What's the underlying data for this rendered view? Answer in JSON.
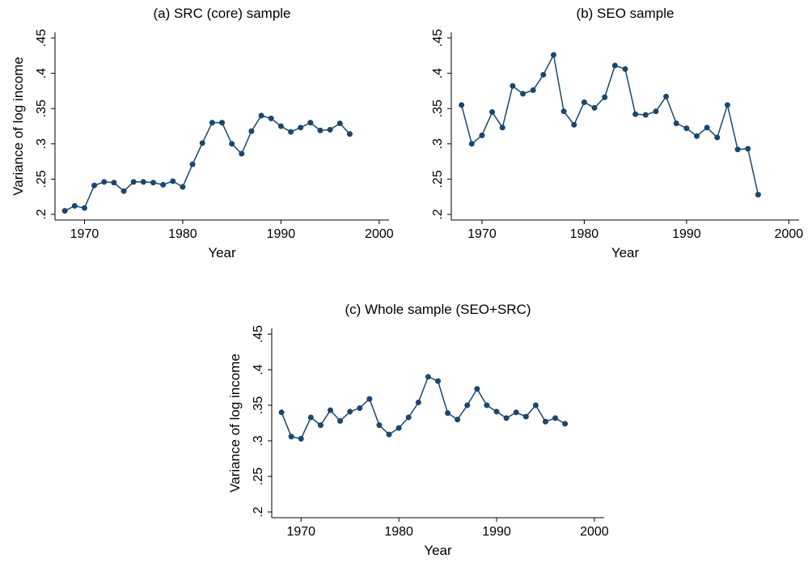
{
  "chart_data": [
    {
      "type": "line",
      "title": "(a) SRC (core) sample",
      "x_label": "Year",
      "y_label": "Variance of log income",
      "x": [
        1968,
        1969,
        1970,
        1971,
        1972,
        1973,
        1974,
        1975,
        1976,
        1977,
        1978,
        1979,
        1980,
        1981,
        1982,
        1983,
        1984,
        1985,
        1986,
        1987,
        1988,
        1989,
        1990,
        1991,
        1992,
        1993,
        1994,
        1995,
        1996,
        1997
      ],
      "values": [
        0.205,
        0.212,
        0.209,
        0.241,
        0.246,
        0.245,
        0.233,
        0.246,
        0.246,
        0.245,
        0.242,
        0.247,
        0.239,
        0.271,
        0.301,
        0.33,
        0.33,
        0.3,
        0.286,
        0.318,
        0.34,
        0.336,
        0.325,
        0.317,
        0.323,
        0.33,
        0.319,
        0.32,
        0.329,
        0.314
      ],
      "color": "#1a476f",
      "xlim": [
        1967,
        2001
      ],
      "xticks": [
        1970,
        1980,
        1990,
        2000
      ],
      "ylim": [
        0.192,
        0.458
      ],
      "yticks": [
        {
          "value": 0.2,
          "label": ".2"
        },
        {
          "value": 0.25,
          "label": ".25"
        },
        {
          "value": 0.3,
          "label": ".3"
        },
        {
          "value": 0.35,
          "label": ".35"
        },
        {
          "value": 0.4,
          "label": ".4"
        },
        {
          "value": 0.45,
          "label": ".45"
        }
      ]
    },
    {
      "type": "line",
      "title": "(b) SEO sample",
      "x_label": "Year",
      "x": [
        1968,
        1969,
        1970,
        1971,
        1972,
        1973,
        1974,
        1975,
        1976,
        1977,
        1978,
        1979,
        1980,
        1981,
        1982,
        1983,
        1984,
        1985,
        1986,
        1987,
        1988,
        1989,
        1990,
        1991,
        1992,
        1993,
        1994,
        1995,
        1996,
        1997
      ],
      "values": [
        0.355,
        0.3,
        0.312,
        0.345,
        0.323,
        0.382,
        0.371,
        0.376,
        0.398,
        0.426,
        0.346,
        0.327,
        0.359,
        0.351,
        0.366,
        0.411,
        0.406,
        0.342,
        0.341,
        0.346,
        0.367,
        0.329,
        0.322,
        0.311,
        0.323,
        0.309,
        0.355,
        0.292,
        0.293,
        0.228
      ],
      "color": "#1a476f",
      "xlim": [
        1967,
        2001
      ],
      "xticks": [
        1970,
        1980,
        1990,
        2000
      ],
      "ylim": [
        0.192,
        0.458
      ],
      "yticks": [
        {
          "value": 0.2,
          "label": ".2"
        },
        {
          "value": 0.25,
          "label": ".25"
        },
        {
          "value": 0.3,
          "label": ".3"
        },
        {
          "value": 0.35,
          "label": ".35"
        },
        {
          "value": 0.4,
          "label": ".4"
        },
        {
          "value": 0.45,
          "label": ".45"
        }
      ]
    },
    {
      "type": "line",
      "title": "(c) Whole sample (SEO+SRC)",
      "x_label": "Year",
      "y_label": "Variance of log income",
      "x": [
        1968,
        1969,
        1970,
        1971,
        1972,
        1973,
        1974,
        1975,
        1976,
        1977,
        1978,
        1979,
        1980,
        1981,
        1982,
        1983,
        1984,
        1985,
        1986,
        1987,
        1988,
        1989,
        1990,
        1991,
        1992,
        1993,
        1994,
        1995,
        1996,
        1997
      ],
      "values": [
        0.34,
        0.306,
        0.303,
        0.333,
        0.322,
        0.343,
        0.328,
        0.341,
        0.346,
        0.359,
        0.322,
        0.309,
        0.318,
        0.333,
        0.354,
        0.39,
        0.384,
        0.339,
        0.33,
        0.35,
        0.373,
        0.35,
        0.341,
        0.332,
        0.34,
        0.334,
        0.35,
        0.327,
        0.332,
        0.324
      ],
      "color": "#1a476f",
      "xlim": [
        1967,
        2001
      ],
      "xticks": [
        1970,
        1980,
        1990,
        2000
      ],
      "ylim": [
        0.192,
        0.458
      ],
      "yticks": [
        {
          "value": 0.2,
          "label": ".2"
        },
        {
          "value": 0.25,
          "label": ".25"
        },
        {
          "value": 0.3,
          "label": ".3"
        },
        {
          "value": 0.35,
          "label": ".35"
        },
        {
          "value": 0.4,
          "label": ".4"
        },
        {
          "value": 0.45,
          "label": ".45"
        }
      ]
    }
  ]
}
